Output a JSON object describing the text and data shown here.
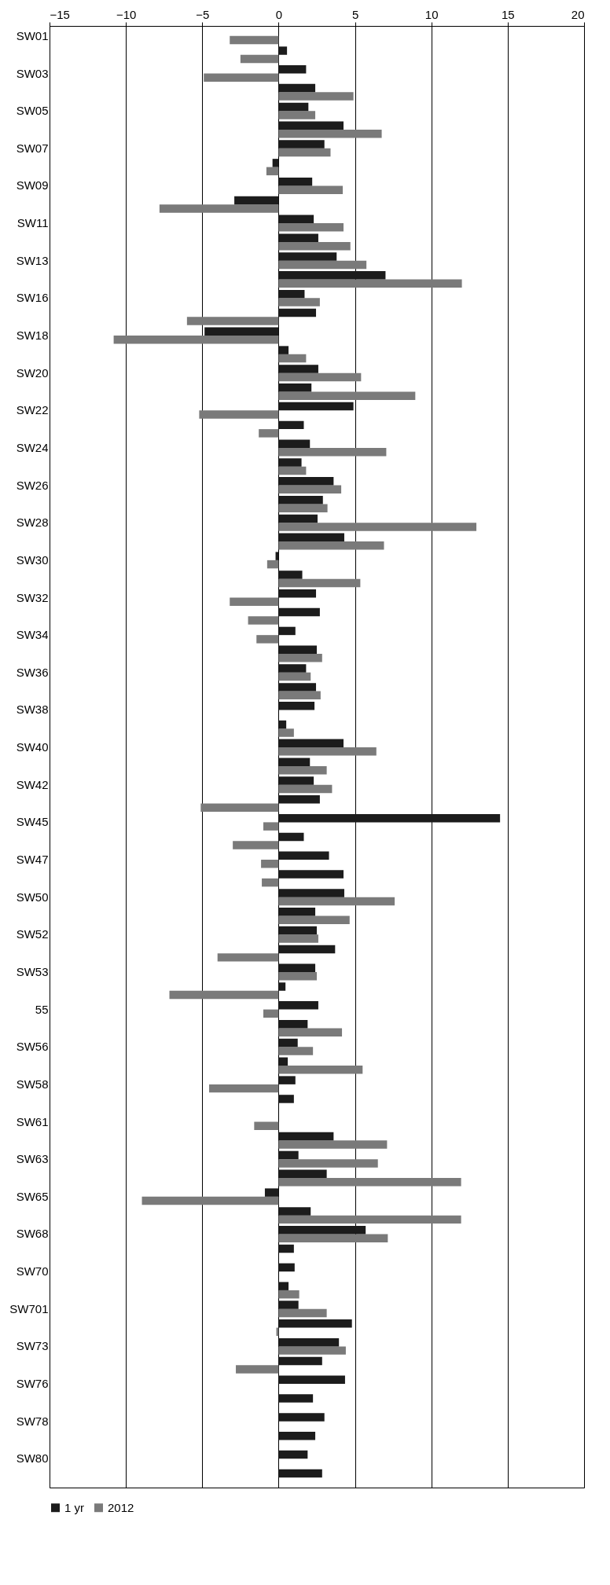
{
  "chart_data": {
    "type": "bar",
    "orientation": "horizontal",
    "categories": [
      "SW01",
      null,
      "SW03",
      null,
      "SW05",
      null,
      "SW07",
      null,
      "SW09",
      null,
      "SW11",
      null,
      "SW13",
      null,
      "SW16",
      null,
      "SW18",
      null,
      "SW20",
      null,
      "SW22",
      null,
      "SW24",
      null,
      "SW26",
      null,
      "SW28",
      null,
      "SW30",
      null,
      "SW32",
      null,
      "SW34",
      null,
      "SW36",
      null,
      "SW38",
      null,
      "SW40",
      null,
      "SW42",
      null,
      "SW45",
      null,
      "SW47",
      null,
      "SW50",
      null,
      "SW52",
      null,
      "SW53",
      null,
      "55",
      null,
      "SW56",
      null,
      "SW58",
      null,
      "SW61",
      null,
      "SW63",
      null,
      "SW65",
      null,
      "SW68",
      null,
      "SW70",
      null,
      "SW701",
      null,
      "SW73",
      null,
      "SW76",
      null,
      "SW78",
      null,
      "SW80",
      null
    ],
    "series": [
      {
        "name": "1 yr",
        "color": "#1c1c1c",
        "values": [
          null,
          0.55,
          1.8,
          2.4,
          1.95,
          4.25,
          3.0,
          -0.4,
          2.2,
          -2.9,
          2.3,
          2.6,
          3.8,
          7.0,
          1.7,
          2.45,
          -4.85,
          0.65,
          2.6,
          2.15,
          4.9,
          1.65,
          2.05,
          1.5,
          3.6,
          2.9,
          2.55,
          4.3,
          -0.2,
          1.55,
          2.45,
          2.7,
          1.1,
          2.5,
          1.8,
          2.45,
          2.35,
          0.5,
          4.25,
          2.05,
          2.3,
          2.7,
          14.5,
          1.65,
          3.3,
          4.25,
          4.3,
          2.4,
          2.5,
          3.7,
          2.4,
          0.45,
          2.6,
          1.9,
          1.25,
          0.6,
          1.1,
          1.0,
          null,
          3.6,
          1.3,
          3.15,
          -0.9,
          2.1,
          5.7,
          1.0,
          1.05,
          0.65,
          1.3,
          4.8,
          3.95,
          2.85,
          4.35,
          2.25,
          3.0,
          2.4,
          1.9,
          2.85
        ]
      },
      {
        "name": "2012",
        "color": "#7a7a7a",
        "values": [
          -3.2,
          -2.5,
          -4.9,
          4.9,
          2.4,
          6.75,
          3.4,
          -0.8,
          4.2,
          -7.8,
          4.25,
          4.7,
          5.75,
          12.0,
          2.7,
          -6.0,
          -10.8,
          1.8,
          5.4,
          8.95,
          -5.2,
          -1.3,
          7.05,
          1.8,
          4.1,
          3.2,
          12.95,
          6.9,
          -0.75,
          5.35,
          -3.2,
          -2.0,
          -1.45,
          2.85,
          2.1,
          2.75,
          null,
          1.0,
          6.4,
          3.15,
          3.5,
          -5.1,
          -1.0,
          -3.0,
          -1.15,
          -1.1,
          7.6,
          4.65,
          2.6,
          -4.0,
          2.5,
          -7.15,
          -1.0,
          4.15,
          2.25,
          5.5,
          -4.55,
          null,
          -1.6,
          7.1,
          6.5,
          11.95,
          -8.95,
          11.95,
          7.15,
          null,
          null,
          1.35,
          3.15,
          -0.15,
          4.4,
          -2.8,
          null,
          null,
          null,
          null,
          null,
          null
        ]
      }
    ],
    "xlim": [
      -15,
      20
    ],
    "xticks": [
      -15,
      -10,
      -5,
      0,
      5,
      10,
      15,
      20
    ],
    "grid": "x",
    "legend": "bottom"
  }
}
